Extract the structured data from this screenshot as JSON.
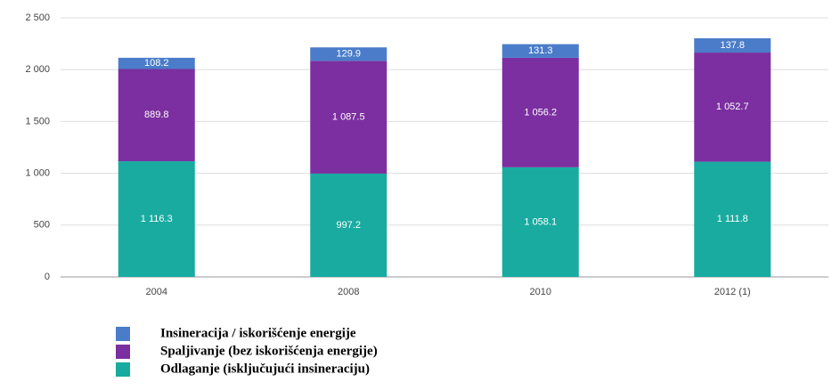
{
  "chart_data": {
    "type": "stacked_bar",
    "categories": [
      "2004",
      "2008",
      "2010",
      "2012 (1)"
    ],
    "series": [
      {
        "name": "Odlaganje (isključujući insineraciju)",
        "color": "#19aba0",
        "values": [
          1116.3,
          997.2,
          1058.1,
          1111.8
        ],
        "value_labels": [
          "1 116.3",
          "997.2",
          "1 058.1",
          "1 111.8"
        ]
      },
      {
        "name": "Spaljivanje (bez iskorišćenja energije)",
        "color": "#7b2fa0",
        "values": [
          889.8,
          1087.5,
          1056.2,
          1052.7
        ],
        "value_labels": [
          "889.8",
          "1 087.5",
          "1 056.2",
          "1 052.7"
        ]
      },
      {
        "name": "Insineracija / iskorišćenje energije",
        "color": "#4a7cc9",
        "values": [
          108.2,
          129.9,
          131.3,
          137.8
        ],
        "value_labels": [
          "108.2",
          "129.9",
          "131.3",
          "137.8"
        ]
      }
    ],
    "ylim": [
      0,
      2500
    ],
    "yticks": [
      0,
      500,
      {
        "value": 1000,
        "label": "1 000"
      },
      {
        "value": 1500,
        "label": "1 500"
      },
      {
        "value": 2000,
        "label": "2 000"
      },
      {
        "value": 2500,
        "label": "2 500"
      }
    ],
    "grid": true
  }
}
